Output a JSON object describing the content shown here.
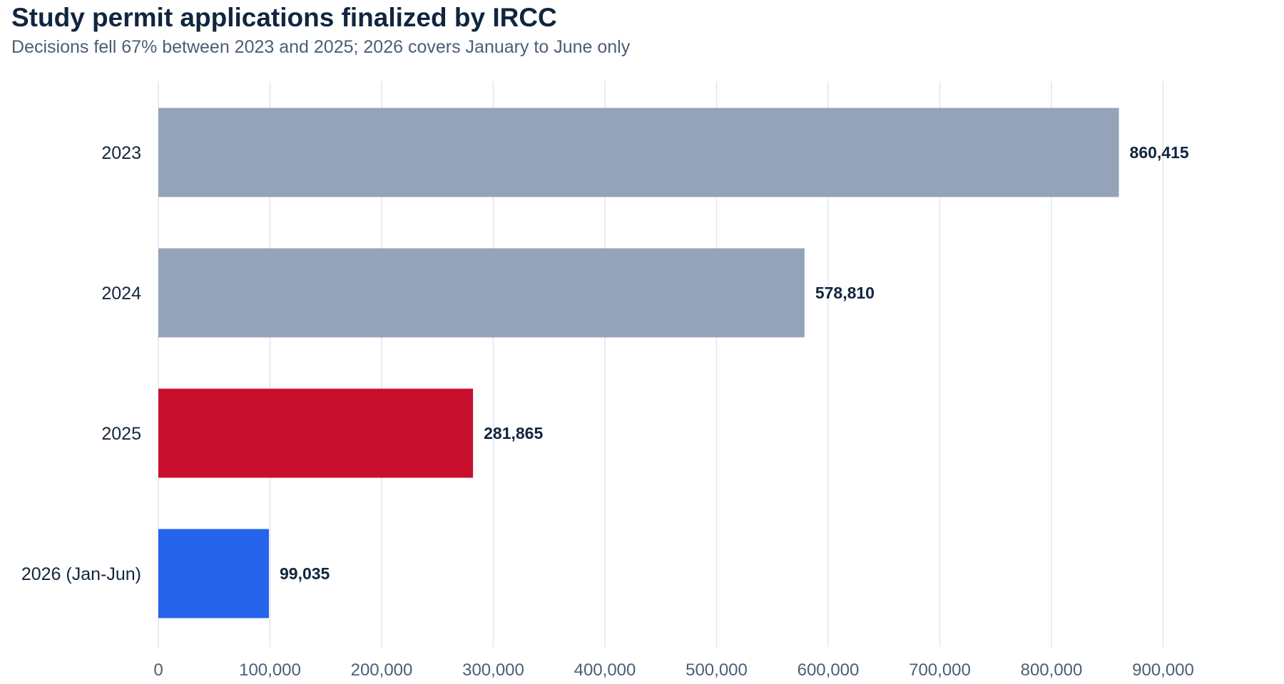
{
  "chart_data": {
    "type": "bar",
    "orientation": "horizontal",
    "title": "Study permit applications finalized by IRCC",
    "subtitle": "Decisions fell 67% between 2023 and 2025; 2026 covers January to June only",
    "xlabel": "",
    "ylabel": "",
    "categories": [
      "2023",
      "2024",
      "2025",
      "2026 (Jan-Jun)"
    ],
    "values": [
      860415,
      578810,
      281865,
      99035
    ],
    "value_labels": [
      "860,415",
      "578,810",
      "281,865",
      "99,035"
    ],
    "bar_colors": [
      "#94a3b8",
      "#94a3b8",
      "#c8102e",
      "#2563eb"
    ],
    "xlim": [
      0,
      1000000
    ],
    "x_ticks": [
      0,
      100000,
      200000,
      300000,
      400000,
      500000,
      600000,
      700000,
      800000,
      900000
    ],
    "x_tick_labels": [
      "0",
      "100,000",
      "200,000",
      "300,000",
      "400,000",
      "500,000",
      "600,000",
      "700,000",
      "800,000",
      "900,000"
    ],
    "grid": true,
    "legend": "none",
    "colors": {
      "title": "#10263f",
      "subtitle": "#4c5e75",
      "grid": "#e1e5ef",
      "value_text": "#10263f"
    }
  }
}
